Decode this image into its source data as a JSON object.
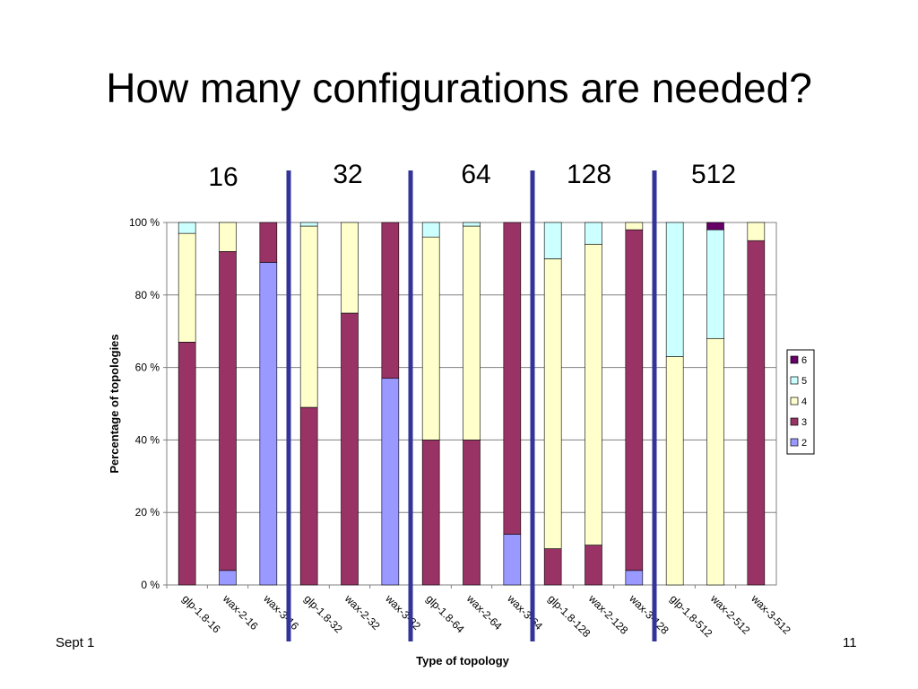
{
  "slide": {
    "title": "How many configurations are needed?",
    "footer_left": "Sept 1",
    "page_number": "11"
  },
  "group_labels": [
    "16",
    "32",
    "64",
    "128",
    "512"
  ],
  "chart_data": {
    "type": "bar",
    "stacked": true,
    "xlabel": "Type of topology",
    "ylabel": "Percentage of topologies",
    "ylim": [
      0,
      100
    ],
    "yticks": [
      "0 %",
      "20 %",
      "40 %",
      "60 %",
      "80 %",
      "100 %"
    ],
    "grid": true,
    "legend_position": "right",
    "categories": [
      "glp-1.8-16",
      "wax-2-16",
      "wax-3-16",
      "glp-1.8-32",
      "wax-2-32",
      "wax-3-32",
      "glp-1.8-64",
      "wax-2-64",
      "wax-3-64",
      "glp-1.8-128",
      "wax-2-128",
      "wax-3-128",
      "glp-1.8-512",
      "wax-2-512",
      "wax-3-512"
    ],
    "series": [
      {
        "name": "2",
        "color": "#9999ff",
        "values": [
          0,
          4,
          89,
          0,
          0,
          57,
          0,
          0,
          14,
          0,
          0,
          4,
          0,
          0,
          0
        ]
      },
      {
        "name": "3",
        "color": "#993366",
        "values": [
          67,
          88,
          11,
          49,
          75,
          43,
          40,
          40,
          86,
          10,
          11,
          94,
          0,
          0,
          95
        ]
      },
      {
        "name": "4",
        "color": "#ffffcc",
        "values": [
          30,
          8,
          0,
          50,
          25,
          0,
          56,
          59,
          0,
          80,
          83,
          2,
          63,
          68,
          5
        ]
      },
      {
        "name": "5",
        "color": "#ccffff",
        "values": [
          3,
          0,
          0,
          1,
          0,
          0,
          4,
          1,
          0,
          10,
          6,
          0,
          37,
          30,
          0
        ]
      },
      {
        "name": "6",
        "color": "#660066",
        "values": [
          0,
          0,
          0,
          0,
          0,
          0,
          0,
          0,
          0,
          0,
          0,
          0,
          0,
          2,
          0
        ]
      }
    ],
    "separator_color": "#333399"
  }
}
